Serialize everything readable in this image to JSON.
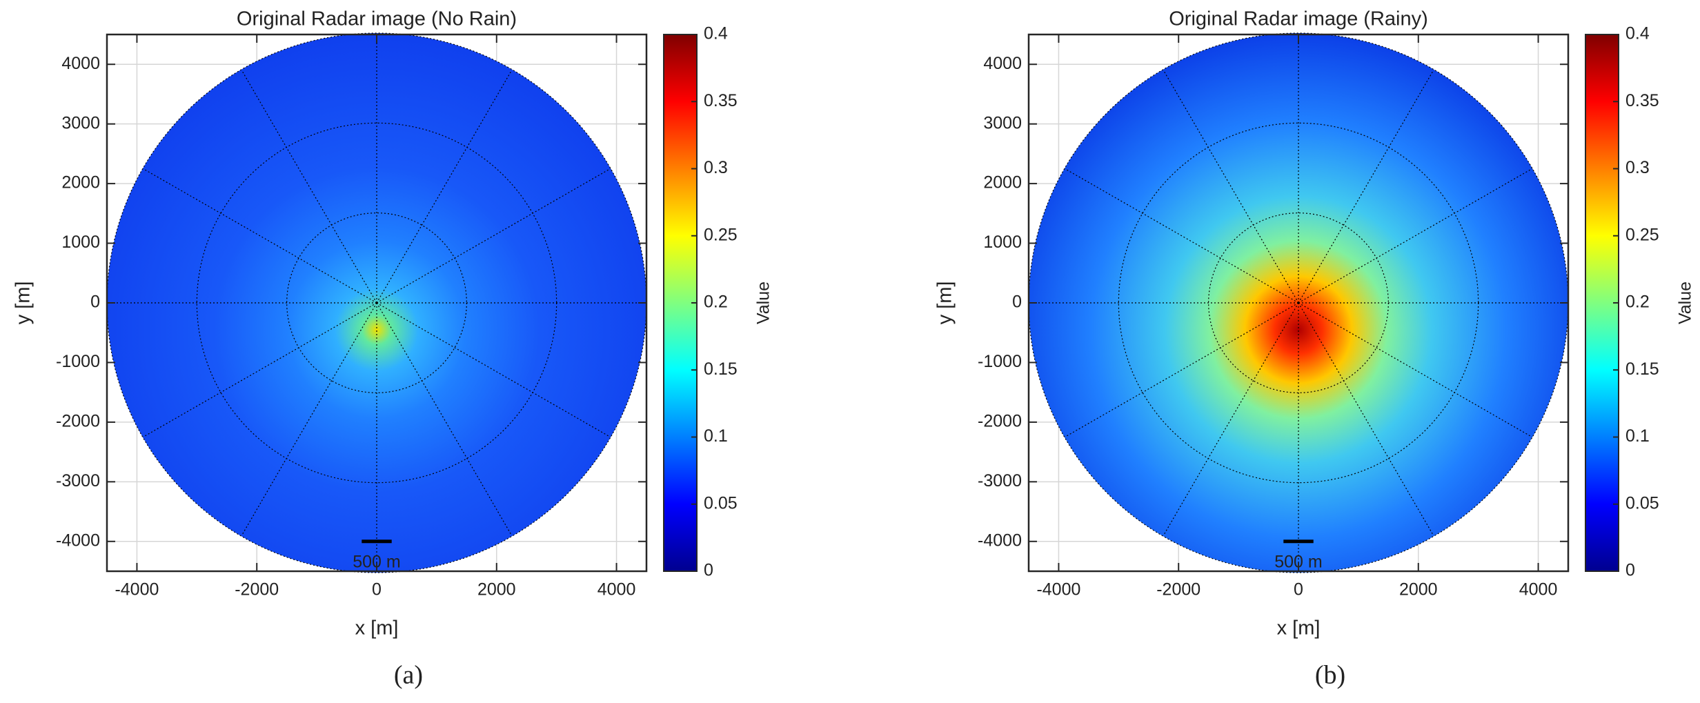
{
  "chart_data": [
    {
      "type": "radar-image",
      "title": "Original Radar image (No Rain)",
      "caption": "(a)",
      "x_label": "x [m]",
      "y_label": "y [m]",
      "xlim": [
        -4500,
        4500
      ],
      "ylim": [
        -4500,
        4500
      ],
      "xticks": [
        -4000,
        -2000,
        0,
        2000,
        4000
      ],
      "yticks": [
        -4000,
        -3000,
        -2000,
        -1000,
        0,
        1000,
        2000,
        3000,
        4000
      ],
      "grid": true,
      "colormap": "jet",
      "clim": [
        0,
        0.4
      ],
      "cticks": [
        0,
        0.05,
        0.1,
        0.15,
        0.2,
        0.25,
        0.3,
        0.35,
        0.4
      ],
      "colorbar_label": "Value",
      "polar_rings": [
        1500,
        3000,
        4500
      ],
      "polar_spoke_step_deg": 30,
      "scale_bar": {
        "label": "500 m",
        "length": 500,
        "y": -4000
      }
    },
    {
      "type": "radar-image",
      "title": "Original Radar image (Rainy)",
      "caption": "(b)",
      "x_label": "x [m]",
      "y_label": "y [m]",
      "xlim": [
        -4500,
        4500
      ],
      "ylim": [
        -4500,
        4500
      ],
      "xticks": [
        -4000,
        -2000,
        0,
        2000,
        4000
      ],
      "yticks": [
        -4000,
        -3000,
        -2000,
        -1000,
        0,
        1000,
        2000,
        3000,
        4000
      ],
      "grid": true,
      "colormap": "jet",
      "clim": [
        0,
        0.4
      ],
      "cticks": [
        0,
        0.05,
        0.1,
        0.15,
        0.2,
        0.25,
        0.3,
        0.35,
        0.4
      ],
      "colorbar_label": "Value",
      "polar_rings": [
        1500,
        3000,
        4500
      ],
      "polar_spoke_step_deg": 30,
      "scale_bar": {
        "label": "500 m",
        "length": 500,
        "y": -4000
      }
    }
  ]
}
